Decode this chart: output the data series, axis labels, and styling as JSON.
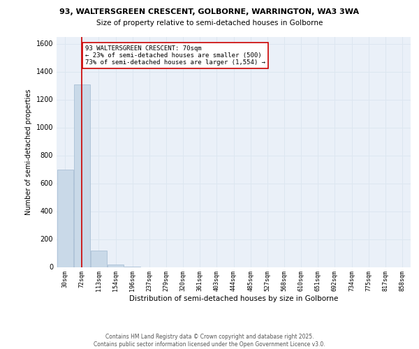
{
  "title1": "93, WALTERSGREEN CRESCENT, GOLBORNE, WARRINGTON, WA3 3WA",
  "title2": "Size of property relative to semi-detached houses in Golborne",
  "xlabel": "Distribution of semi-detached houses by size in Golborne",
  "ylabel": "Number of semi-detached properties",
  "bar_labels": [
    "30sqm",
    "72sqm",
    "113sqm",
    "154sqm",
    "196sqm",
    "237sqm",
    "279sqm",
    "320sqm",
    "361sqm",
    "403sqm",
    "444sqm",
    "485sqm",
    "527sqm",
    "568sqm",
    "610sqm",
    "651sqm",
    "692sqm",
    "734sqm",
    "775sqm",
    "817sqm",
    "858sqm"
  ],
  "bar_values": [
    700,
    1310,
    120,
    20,
    5,
    0,
    0,
    0,
    0,
    0,
    0,
    0,
    0,
    0,
    0,
    0,
    0,
    0,
    0,
    0,
    0
  ],
  "bar_color": "#c9d9e8",
  "bar_edge_color": "#a0b8d0",
  "grid_color": "#dce6f0",
  "background_color": "#eaf0f8",
  "vline_x": 1,
  "vline_color": "#cc0000",
  "annotation_title": "93 WALTERSGREEN CRESCENT: 70sqm",
  "annotation_line1": "← 23% of semi-detached houses are smaller (500)",
  "annotation_line2": "73% of semi-detached houses are larger (1,554) →",
  "annotation_box_color": "#ffffff",
  "annotation_box_edge": "#cc0000",
  "ylim": [
    0,
    1650
  ],
  "yticks": [
    0,
    200,
    400,
    600,
    800,
    1000,
    1200,
    1400,
    1600
  ],
  "footer_line1": "Contains HM Land Registry data © Crown copyright and database right 2025.",
  "footer_line2": "Contains public sector information licensed under the Open Government Licence v3.0."
}
